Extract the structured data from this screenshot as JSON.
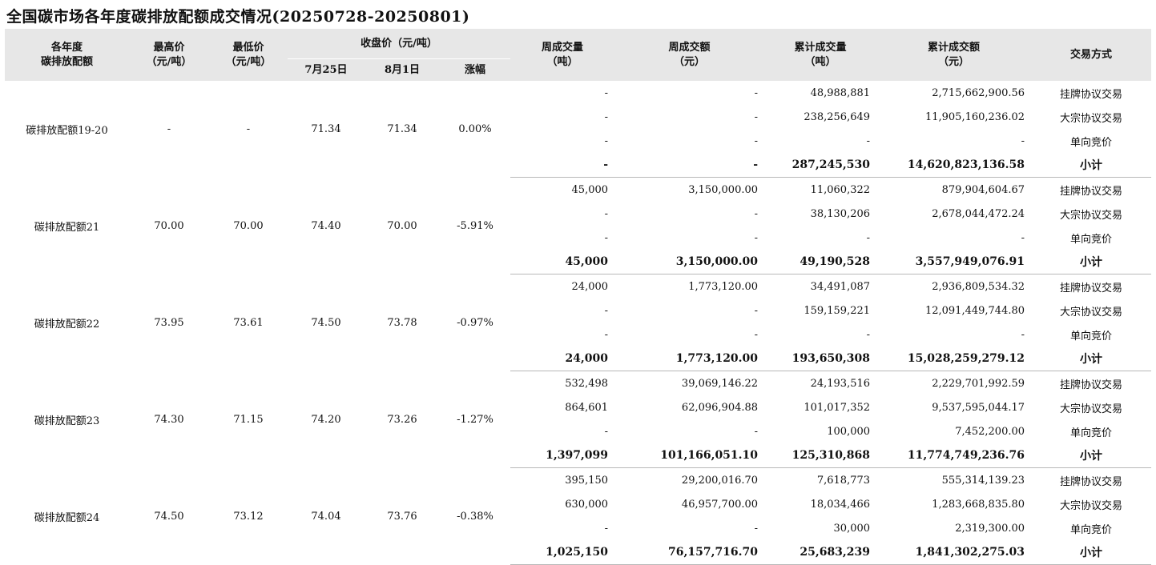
{
  "title": "全国碳市场各年度碳排放配额成交情况(20250728-20250801)",
  "headers": {
    "allowance_l1": "各年度",
    "allowance_l2": "碳排放配额",
    "high_l1": "最高价",
    "high_l2": "（元/吨）",
    "low_l1": "最低价",
    "low_l2": "（元/吨）",
    "close_group": "收盘价（元/吨）",
    "close_prev": "7月25日",
    "close_curr": "8月1日",
    "change": "涨幅",
    "week_vol_l1": "周成交量",
    "week_vol_l2": "（吨）",
    "week_amt_l1": "周成交额",
    "week_amt_l2": "（元）",
    "cum_vol_l1": "累计成交量",
    "cum_vol_l2": "（吨）",
    "cum_amt_l1": "累计成交额",
    "cum_amt_l2": "（元）",
    "method": "交易方式"
  },
  "groups": [
    {
      "name": "碳排放配额19-20",
      "high": "-",
      "low": "-",
      "close_prev": "71.34",
      "close_curr": "71.34",
      "change": "0.00%",
      "rows": [
        {
          "week_vol": "-",
          "week_amt": "-",
          "cum_vol": "48,988,881",
          "cum_amt": "2,715,662,900.56",
          "method": "挂牌协议交易"
        },
        {
          "week_vol": "-",
          "week_amt": "-",
          "cum_vol": "238,256,649",
          "cum_amt": "11,905,160,236.02",
          "method": "大宗协议交易"
        },
        {
          "week_vol": "-",
          "week_amt": "-",
          "cum_vol": "-",
          "cum_amt": "-",
          "method": "单向竞价"
        },
        {
          "week_vol": "-",
          "week_amt": "-",
          "cum_vol": "287,245,530",
          "cum_amt": "14,620,823,136.58",
          "method": "小计"
        }
      ]
    },
    {
      "name": "碳排放配额21",
      "high": "70.00",
      "low": "70.00",
      "close_prev": "74.40",
      "close_curr": "70.00",
      "change": "-5.91%",
      "rows": [
        {
          "week_vol": "45,000",
          "week_amt": "3,150,000.00",
          "cum_vol": "11,060,322",
          "cum_amt": "879,904,604.67",
          "method": "挂牌协议交易"
        },
        {
          "week_vol": "-",
          "week_amt": "-",
          "cum_vol": "38,130,206",
          "cum_amt": "2,678,044,472.24",
          "method": "大宗协议交易"
        },
        {
          "week_vol": "-",
          "week_amt": "-",
          "cum_vol": "-",
          "cum_amt": "-",
          "method": "单向竞价"
        },
        {
          "week_vol": "45,000",
          "week_amt": "3,150,000.00",
          "cum_vol": "49,190,528",
          "cum_amt": "3,557,949,076.91",
          "method": "小计"
        }
      ]
    },
    {
      "name": "碳排放配额22",
      "high": "73.95",
      "low": "73.61",
      "close_prev": "74.50",
      "close_curr": "73.78",
      "change": "-0.97%",
      "rows": [
        {
          "week_vol": "24,000",
          "week_amt": "1,773,120.00",
          "cum_vol": "34,491,087",
          "cum_amt": "2,936,809,534.32",
          "method": "挂牌协议交易"
        },
        {
          "week_vol": "-",
          "week_amt": "-",
          "cum_vol": "159,159,221",
          "cum_amt": "12,091,449,744.80",
          "method": "大宗协议交易"
        },
        {
          "week_vol": "-",
          "week_amt": "-",
          "cum_vol": "-",
          "cum_amt": "-",
          "method": "单向竞价"
        },
        {
          "week_vol": "24,000",
          "week_amt": "1,773,120.00",
          "cum_vol": "193,650,308",
          "cum_amt": "15,028,259,279.12",
          "method": "小计"
        }
      ]
    },
    {
      "name": "碳排放配额23",
      "high": "74.30",
      "low": "71.15",
      "close_prev": "74.20",
      "close_curr": "73.26",
      "change": "-1.27%",
      "rows": [
        {
          "week_vol": "532,498",
          "week_amt": "39,069,146.22",
          "cum_vol": "24,193,516",
          "cum_amt": "2,229,701,992.59",
          "method": "挂牌协议交易"
        },
        {
          "week_vol": "864,601",
          "week_amt": "62,096,904.88",
          "cum_vol": "101,017,352",
          "cum_amt": "9,537,595,044.17",
          "method": "大宗协议交易"
        },
        {
          "week_vol": "-",
          "week_amt": "-",
          "cum_vol": "100,000",
          "cum_amt": "7,452,200.00",
          "method": "单向竞价"
        },
        {
          "week_vol": "1,397,099",
          "week_amt": "101,166,051.10",
          "cum_vol": "125,310,868",
          "cum_amt": "11,774,749,236.76",
          "method": "小计"
        }
      ]
    },
    {
      "name": "碳排放配额24",
      "high": "74.50",
      "low": "73.12",
      "close_prev": "74.04",
      "close_curr": "73.76",
      "change": "-0.38%",
      "rows": [
        {
          "week_vol": "395,150",
          "week_amt": "29,200,016.70",
          "cum_vol": "7,618,773",
          "cum_amt": "555,314,139.23",
          "method": "挂牌协议交易"
        },
        {
          "week_vol": "630,000",
          "week_amt": "46,957,700.00",
          "cum_vol": "18,034,466",
          "cum_amt": "1,283,668,835.80",
          "method": "大宗协议交易"
        },
        {
          "week_vol": "-",
          "week_amt": "-",
          "cum_vol": "30,000",
          "cum_amt": "2,319,300.00",
          "method": "单向竞价"
        },
        {
          "week_vol": "1,025,150",
          "week_amt": "76,157,716.70",
          "cum_vol": "25,683,239",
          "cum_amt": "1,841,302,275.03",
          "method": "小计"
        }
      ]
    }
  ]
}
